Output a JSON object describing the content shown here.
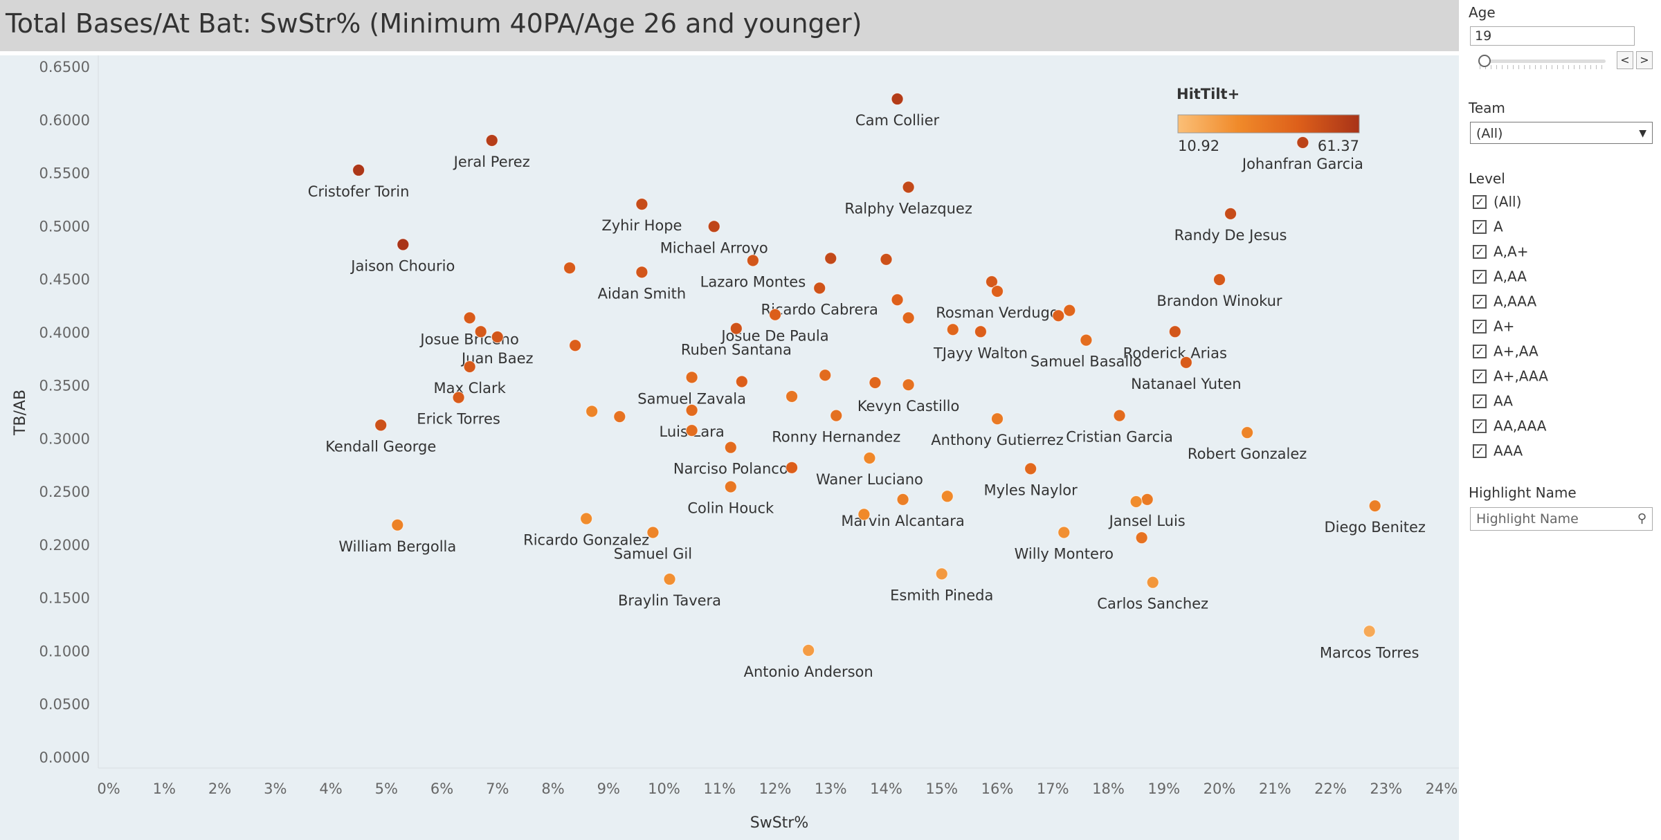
{
  "title": "Total Bases/At Bat: SwStr% (Minimum 40PA/Age 26 and younger)",
  "sidebar": {
    "age_label": "Age",
    "age_value": "19",
    "age_prev": "<",
    "age_next": ">",
    "team_label": "Team",
    "team_value": "(All)",
    "level_label": "Level",
    "levels": [
      "(All)",
      "A",
      "A,A+",
      "A,AA",
      "A,AAA",
      "A+",
      "A+,AA",
      "A+,AAA",
      "AA",
      "AA,AAA",
      "AAA"
    ],
    "level_checked": [
      true,
      true,
      true,
      true,
      true,
      true,
      true,
      true,
      true,
      true,
      true
    ],
    "highlight_label": "Highlight Name",
    "highlight_placeholder": "Highlight Name"
  },
  "chart_data": {
    "type": "scatter",
    "title": "Total Bases/At Bat: SwStr% (Minimum 40PA/Age 26 and younger)",
    "xlabel": "SwStr%",
    "ylabel": "TB/AB",
    "xlim": [
      0,
      24
    ],
    "ylim": [
      0,
      0.65
    ],
    "x_ticks": [
      "0%",
      "1%",
      "2%",
      "3%",
      "4%",
      "5%",
      "6%",
      "7%",
      "8%",
      "9%",
      "10%",
      "11%",
      "12%",
      "13%",
      "14%",
      "15%",
      "16%",
      "17%",
      "18%",
      "19%",
      "20%",
      "21%",
      "22%",
      "23%",
      "24%"
    ],
    "y_ticks": [
      "0.0000",
      "0.0500",
      "0.1000",
      "0.1500",
      "0.2000",
      "0.2500",
      "0.3000",
      "0.3500",
      "0.4000",
      "0.4500",
      "0.5000",
      "0.5500",
      "0.6000",
      "0.6500"
    ],
    "legend": {
      "title": "HitTilt+",
      "min_label": "10.92",
      "max_label": "61.37",
      "min": 10.92,
      "max": 61.37,
      "colors": [
        "#fbbf77",
        "#f08a2a",
        "#dd5f1a",
        "#a83318"
      ]
    },
    "points": [
      {
        "x": 14.2,
        "y": 0.62,
        "c": 58,
        "label": "Cam Collier"
      },
      {
        "x": 6.9,
        "y": 0.581,
        "c": 57,
        "label": "Jeral Perez"
      },
      {
        "x": 21.5,
        "y": 0.579,
        "c": 55,
        "label": "Johanfran Garcia"
      },
      {
        "x": 4.5,
        "y": 0.553,
        "c": 60,
        "label": "Cristofer Torin"
      },
      {
        "x": 14.4,
        "y": 0.537,
        "c": 53,
        "label": "Ralphy Velazquez"
      },
      {
        "x": 9.6,
        "y": 0.521,
        "c": 52,
        "label": "Zyhir Hope"
      },
      {
        "x": 20.2,
        "y": 0.512,
        "c": 52,
        "label": "Randy De Jesus"
      },
      {
        "x": 10.9,
        "y": 0.5,
        "c": 54,
        "label": "Michael Arroyo"
      },
      {
        "x": 5.3,
        "y": 0.483,
        "c": 61,
        "label": "Jaison Chourio"
      },
      {
        "x": 13.0,
        "y": 0.47,
        "c": 53,
        "label": ""
      },
      {
        "x": 14.0,
        "y": 0.469,
        "c": 50,
        "label": ""
      },
      {
        "x": 11.6,
        "y": 0.468,
        "c": 48,
        "label": "Lazaro Montes"
      },
      {
        "x": 8.3,
        "y": 0.461,
        "c": 46,
        "label": ""
      },
      {
        "x": 9.6,
        "y": 0.457,
        "c": 48,
        "label": "Aidan Smith"
      },
      {
        "x": 20.0,
        "y": 0.45,
        "c": 47,
        "label": "Brandon Winokur"
      },
      {
        "x": 15.9,
        "y": 0.448,
        "c": 47,
        "label": ""
      },
      {
        "x": 12.8,
        "y": 0.442,
        "c": 49,
        "label": "Ricardo Cabrera"
      },
      {
        "x": 16.0,
        "y": 0.439,
        "c": 44,
        "label": "Rosman Verdugo"
      },
      {
        "x": 14.2,
        "y": 0.431,
        "c": 44,
        "label": ""
      },
      {
        "x": 17.3,
        "y": 0.421,
        "c": 42,
        "label": ""
      },
      {
        "x": 12.0,
        "y": 0.417,
        "c": 45,
        "label": "Josue De Paula"
      },
      {
        "x": 17.1,
        "y": 0.416,
        "c": 44,
        "label": ""
      },
      {
        "x": 6.5,
        "y": 0.414,
        "c": 46,
        "label": "Josue Briceno"
      },
      {
        "x": 14.4,
        "y": 0.414,
        "c": 42,
        "label": ""
      },
      {
        "x": 11.3,
        "y": 0.404,
        "c": 49,
        "label": "Ruben Santana"
      },
      {
        "x": 15.2,
        "y": 0.403,
        "c": 42,
        "label": ""
      },
      {
        "x": 6.7,
        "y": 0.401,
        "c": 47,
        "label": ""
      },
      {
        "x": 15.7,
        "y": 0.401,
        "c": 45,
        "label": "TJayy Walton"
      },
      {
        "x": 19.2,
        "y": 0.401,
        "c": 48,
        "label": "Roderick Arias"
      },
      {
        "x": 7.0,
        "y": 0.396,
        "c": 48,
        "label": "Juan Baez"
      },
      {
        "x": 17.6,
        "y": 0.393,
        "c": 39,
        "label": "Samuel Basallo"
      },
      {
        "x": 8.4,
        "y": 0.388,
        "c": 45,
        "label": ""
      },
      {
        "x": 19.4,
        "y": 0.372,
        "c": 46,
        "label": "Natanael Yuten"
      },
      {
        "x": 6.5,
        "y": 0.368,
        "c": 47,
        "label": "Max Clark"
      },
      {
        "x": 12.9,
        "y": 0.36,
        "c": 40,
        "label": ""
      },
      {
        "x": 10.5,
        "y": 0.358,
        "c": 40,
        "label": "Samuel Zavala"
      },
      {
        "x": 11.4,
        "y": 0.354,
        "c": 45,
        "label": ""
      },
      {
        "x": 13.8,
        "y": 0.353,
        "c": 42,
        "label": ""
      },
      {
        "x": 14.4,
        "y": 0.351,
        "c": 37,
        "label": "Kevyn Castillo"
      },
      {
        "x": 12.3,
        "y": 0.34,
        "c": 36,
        "label": ""
      },
      {
        "x": 6.3,
        "y": 0.339,
        "c": 46,
        "label": "Erick Torres"
      },
      {
        "x": 10.5,
        "y": 0.327,
        "c": 40,
        "label": "Luis Lara"
      },
      {
        "x": 8.7,
        "y": 0.326,
        "c": 30,
        "label": ""
      },
      {
        "x": 18.2,
        "y": 0.322,
        "c": 40,
        "label": "Cristian Garcia"
      },
      {
        "x": 13.1,
        "y": 0.322,
        "c": 38,
        "label": "Ronny Hernandez"
      },
      {
        "x": 9.2,
        "y": 0.321,
        "c": 37,
        "label": ""
      },
      {
        "x": 16.0,
        "y": 0.319,
        "c": 34,
        "label": "Anthony Gutierrez"
      },
      {
        "x": 4.9,
        "y": 0.313,
        "c": 50,
        "label": "Kendall George"
      },
      {
        "x": 10.5,
        "y": 0.308,
        "c": 39,
        "label": ""
      },
      {
        "x": 20.5,
        "y": 0.306,
        "c": 30,
        "label": "Robert Gonzalez"
      },
      {
        "x": 11.2,
        "y": 0.292,
        "c": 40,
        "label": "Narciso Polanco"
      },
      {
        "x": 13.7,
        "y": 0.282,
        "c": 29,
        "label": "Waner Luciano"
      },
      {
        "x": 12.3,
        "y": 0.273,
        "c": 45,
        "label": ""
      },
      {
        "x": 16.6,
        "y": 0.272,
        "c": 41,
        "label": "Myles Naylor"
      },
      {
        "x": 11.2,
        "y": 0.255,
        "c": 35,
        "label": "Colin Houck"
      },
      {
        "x": 15.1,
        "y": 0.246,
        "c": 28,
        "label": ""
      },
      {
        "x": 14.3,
        "y": 0.243,
        "c": 32,
        "label": "Marvin Alcantara"
      },
      {
        "x": 18.7,
        "y": 0.243,
        "c": 34,
        "label": "Jansel Luis"
      },
      {
        "x": 18.5,
        "y": 0.241,
        "c": 27,
        "label": ""
      },
      {
        "x": 22.8,
        "y": 0.237,
        "c": 32,
        "label": "Diego Benitez"
      },
      {
        "x": 13.6,
        "y": 0.229,
        "c": 28,
        "label": ""
      },
      {
        "x": 8.6,
        "y": 0.225,
        "c": 27,
        "label": "Ricardo Gonzalez"
      },
      {
        "x": 5.2,
        "y": 0.219,
        "c": 31,
        "label": "William Bergolla"
      },
      {
        "x": 9.8,
        "y": 0.212,
        "c": 30,
        "label": "Samuel Gil"
      },
      {
        "x": 17.2,
        "y": 0.212,
        "c": 26,
        "label": "Willy Montero"
      },
      {
        "x": 18.6,
        "y": 0.207,
        "c": 37,
        "label": ""
      },
      {
        "x": 15.0,
        "y": 0.173,
        "c": 23,
        "label": "Esmith Pineda"
      },
      {
        "x": 10.1,
        "y": 0.168,
        "c": 26,
        "label": "Braylin Tavera"
      },
      {
        "x": 18.8,
        "y": 0.165,
        "c": 24,
        "label": "Carlos Sanchez"
      },
      {
        "x": 22.7,
        "y": 0.119,
        "c": 18,
        "label": "Marcos Torres"
      },
      {
        "x": 12.6,
        "y": 0.101,
        "c": 22,
        "label": "Antonio Anderson"
      }
    ]
  }
}
